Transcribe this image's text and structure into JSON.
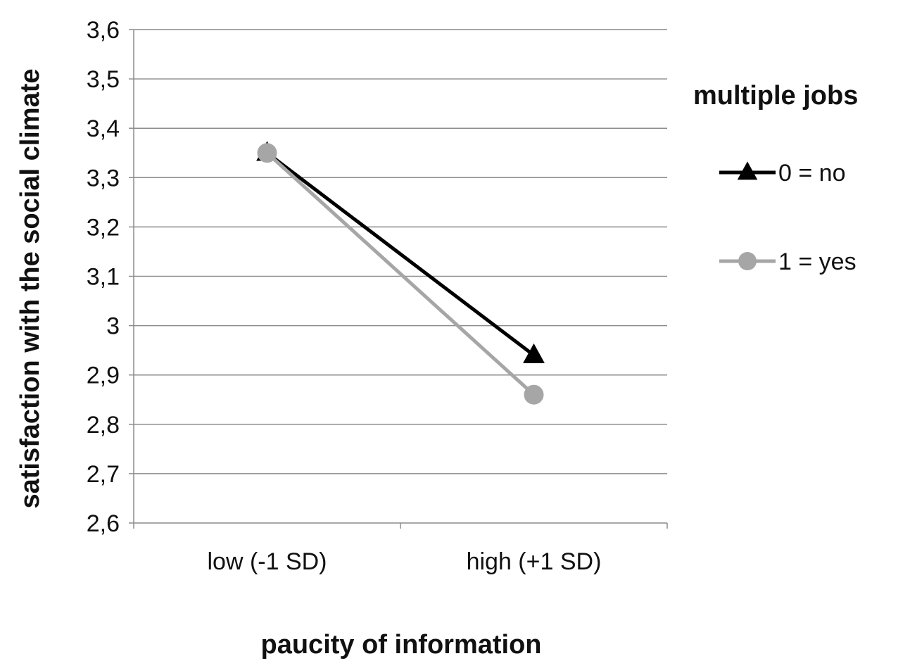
{
  "chart_data": {
    "type": "line",
    "xlabel": "paucity of information",
    "ylabel": "satisfaction with the social climate",
    "categories": [
      "low (-1 SD)",
      "high (+1 SD)"
    ],
    "ylim": [
      2.6,
      3.6
    ],
    "yticks": [
      "3,6",
      "3,5",
      "3,4",
      "3,3",
      "3,2",
      "3,1",
      "3",
      "2,9",
      "2,8",
      "2,7",
      "2,6"
    ],
    "grid": true,
    "legend": {
      "title": "multiple jobs",
      "placement": "right"
    },
    "series": [
      {
        "name": "0 = no",
        "values": [
          3.35,
          2.94
        ],
        "color": "#000000",
        "marker": "triangle"
      },
      {
        "name": "1 = yes",
        "values": [
          3.35,
          2.86
        ],
        "color": "#a6a6a6",
        "marker": "circle"
      }
    ]
  }
}
